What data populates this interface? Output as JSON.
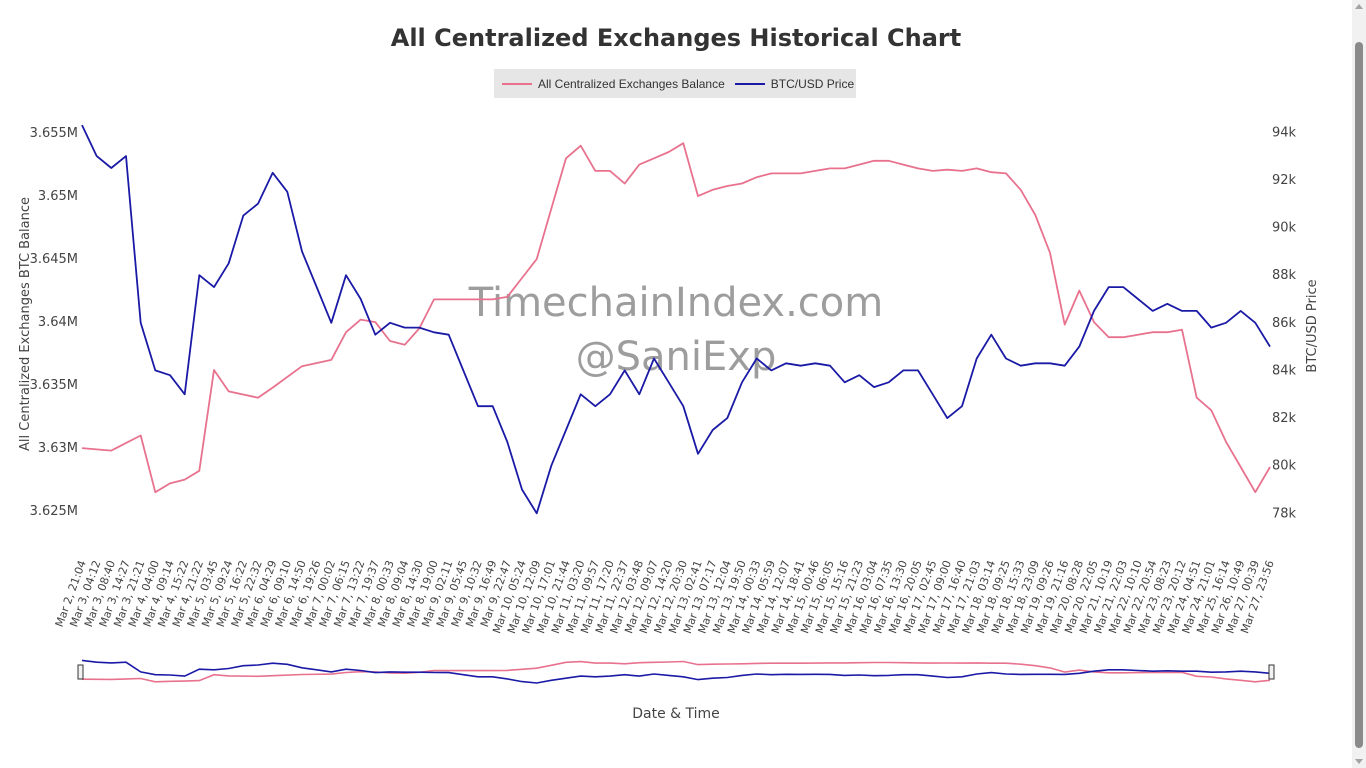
{
  "chart_data": {
    "type": "line",
    "title": "All Centralized Exchanges Historical Chart",
    "xlabel": "Date & Time",
    "ylabel_left": "All Centralized Exchanges BTC Balance",
    "ylabel_right": "BTC/USD Price",
    "y_left_ticks": [
      "3.625M",
      "3.63M",
      "3.635M",
      "3.64M",
      "3.645M",
      "3.65M",
      "3.655M"
    ],
    "y_left_range": [
      3.6235,
      3.6562
    ],
    "y_right_ticks": [
      "78k",
      "80k",
      "82k",
      "84k",
      "86k",
      "88k",
      "90k",
      "92k",
      "94k"
    ],
    "y_right_range": [
      77.3,
      94.6
    ],
    "x_ticks": [
      "Mar 2, 21:04",
      "Mar 3, 04:12",
      "Mar 3, 08:40",
      "Mar 3, 14:27",
      "Mar 3, 21:21",
      "Mar 4, 04:00",
      "Mar 4, 09:14",
      "Mar 4, 15:22",
      "Mar 4, 21:22",
      "Mar 5, 03:45",
      "Mar 5, 09:24",
      "Mar 5, 16:22",
      "Mar 5, 22:32",
      "Mar 6, 04:29",
      "Mar 6, 09:10",
      "Mar 6, 14:50",
      "Mar 6, 19:26",
      "Mar 7, 00:02",
      "Mar 7, 06:15",
      "Mar 7, 13:22",
      "Mar 7, 19:37",
      "Mar 8, 00:33",
      "Mar 8, 09:04",
      "Mar 8, 14:30",
      "Mar 8, 19:00",
      "Mar 9, 02:11",
      "Mar 9, 05:45",
      "Mar 9, 10:32",
      "Mar 9, 16:49",
      "Mar 9, 22:47",
      "Mar 10, 05:24",
      "Mar 10, 12:09",
      "Mar 10, 17:01",
      "Mar 10, 21:44",
      "Mar 11, 03:20",
      "Mar 11, 09:57",
      "Mar 11, 17:20",
      "Mar 11, 22:37",
      "Mar 12, 03:48",
      "Mar 12, 09:07",
      "Mar 12, 14:20",
      "Mar 12, 20:30",
      "Mar 13, 02:41",
      "Mar 13, 07:17",
      "Mar 13, 12:04",
      "Mar 13, 19:50",
      "Mar 14, 00:33",
      "Mar 14, 05:59",
      "Mar 14, 12:07",
      "Mar 14, 18:41",
      "Mar 15, 00:46",
      "Mar 15, 06:05",
      "Mar 15, 15:16",
      "Mar 15, 21:23",
      "Mar 16, 03:04",
      "Mar 16, 07:35",
      "Mar 16, 13:30",
      "Mar 16, 20:05",
      "Mar 17, 02:45",
      "Mar 17, 09:00",
      "Mar 17, 16:40",
      "Mar 17, 21:03",
      "Mar 18, 03:14",
      "Mar 18, 09:25",
      "Mar 18, 15:33",
      "Mar 18, 23:09",
      "Mar 19, 09:26",
      "Mar 19, 21:16",
      "Mar 20, 08:28",
      "Mar 20, 22:05",
      "Mar 21, 10:19",
      "Mar 21, 22:03",
      "Mar 22, 10:10",
      "Mar 22, 20:54",
      "Mar 23, 08:23",
      "Mar 23, 20:12",
      "Mar 24, 04:51",
      "Mar 24, 21:01",
      "Mar 25, 16:14",
      "Mar 26, 10:49",
      "Mar 27, 00:39",
      "Mar 27, 23:56"
    ],
    "series": [
      {
        "name": "All Centralized Exchanges Balance",
        "color": "#e8728e",
        "axis": "left",
        "x": [
          0,
          2,
          4,
          5,
          6,
          7,
          8,
          9,
          10,
          12,
          13,
          15,
          17,
          18,
          19,
          20,
          21,
          22,
          23,
          24,
          25,
          26,
          27,
          28,
          29,
          30,
          31,
          32,
          33,
          34,
          35,
          36,
          37,
          38,
          39,
          40,
          41,
          42,
          43,
          44,
          45,
          46,
          47,
          48,
          49,
          50,
          51,
          52,
          53,
          54,
          55,
          56,
          57,
          58,
          59,
          60,
          61,
          62,
          63,
          64,
          65,
          66,
          67,
          68,
          69,
          70,
          71,
          72,
          73,
          74,
          75,
          76,
          77,
          78,
          79,
          80,
          81
        ],
        "values": [
          3.63,
          3.6298,
          3.631,
          3.6265,
          3.6272,
          3.6275,
          3.6282,
          3.6362,
          3.6345,
          3.634,
          3.6348,
          3.6365,
          3.637,
          3.6392,
          3.6402,
          3.64,
          3.6385,
          3.6382,
          3.6395,
          3.6418,
          3.6418,
          3.6418,
          3.6418,
          3.6418,
          3.642,
          3.6435,
          3.645,
          3.649,
          3.653,
          3.654,
          3.652,
          3.652,
          3.651,
          3.6525,
          3.653,
          3.6535,
          3.6542,
          3.65,
          3.6505,
          3.6508,
          3.651,
          3.6515,
          3.6518,
          3.6518,
          3.6518,
          3.652,
          3.6522,
          3.6522,
          3.6525,
          3.6528,
          3.6528,
          3.6525,
          3.6522,
          3.652,
          3.6521,
          3.652,
          3.6522,
          3.6519,
          3.6518,
          3.6505,
          3.6485,
          3.6455,
          3.6398,
          3.6425,
          3.64,
          3.6388,
          3.6388,
          3.639,
          3.6392,
          3.6392,
          3.6394,
          3.634,
          3.633,
          3.6305,
          3.6285,
          3.6265,
          3.6285
        ]
      },
      {
        "name": "BTC/USD Price",
        "color": "#1a1aa6",
        "axis": "right",
        "x": [
          0,
          1,
          2,
          3,
          4,
          5,
          6,
          7,
          8,
          9,
          10,
          11,
          12,
          13,
          14,
          15,
          16,
          17,
          18,
          19,
          20,
          21,
          22,
          23,
          24,
          25,
          26,
          27,
          28,
          29,
          30,
          31,
          32,
          33,
          34,
          35,
          36,
          37,
          38,
          39,
          40,
          41,
          42,
          43,
          44,
          45,
          46,
          47,
          48,
          49,
          50,
          51,
          52,
          53,
          54,
          55,
          56,
          57,
          58,
          59,
          60,
          61,
          62,
          63,
          64,
          65,
          66,
          67,
          68,
          69,
          70,
          71,
          72,
          73,
          74,
          75,
          76,
          77,
          78,
          79,
          80,
          81
        ],
        "values": [
          94.3,
          93.0,
          92.5,
          93.0,
          86.0,
          84.0,
          83.8,
          83.0,
          88.0,
          87.5,
          88.5,
          90.5,
          91.0,
          92.3,
          91.5,
          89.0,
          87.5,
          86.0,
          88.0,
          87.0,
          85.5,
          86.0,
          85.8,
          85.8,
          85.6,
          85.5,
          84.0,
          82.5,
          82.5,
          81.0,
          79.0,
          78.0,
          80.0,
          81.5,
          83.0,
          82.5,
          83.0,
          84.0,
          83.0,
          84.5,
          83.5,
          82.5,
          80.5,
          81.5,
          82.0,
          83.5,
          84.5,
          84.0,
          84.3,
          84.2,
          84.3,
          84.2,
          83.5,
          83.8,
          83.3,
          83.5,
          84.0,
          84.0,
          83.0,
          82.0,
          82.5,
          84.5,
          85.5,
          84.5,
          84.2,
          84.3,
          84.3,
          84.2,
          85.0,
          86.5,
          87.5,
          87.5,
          87.0,
          86.5,
          86.8,
          86.5,
          86.5,
          85.8,
          86.0,
          86.5,
          86.0,
          85.0
        ]
      }
    ],
    "grid": false,
    "legend_placement": "top-center",
    "watermark_lines": [
      "TimechainIndex.com",
      "@SaniExp"
    ]
  }
}
